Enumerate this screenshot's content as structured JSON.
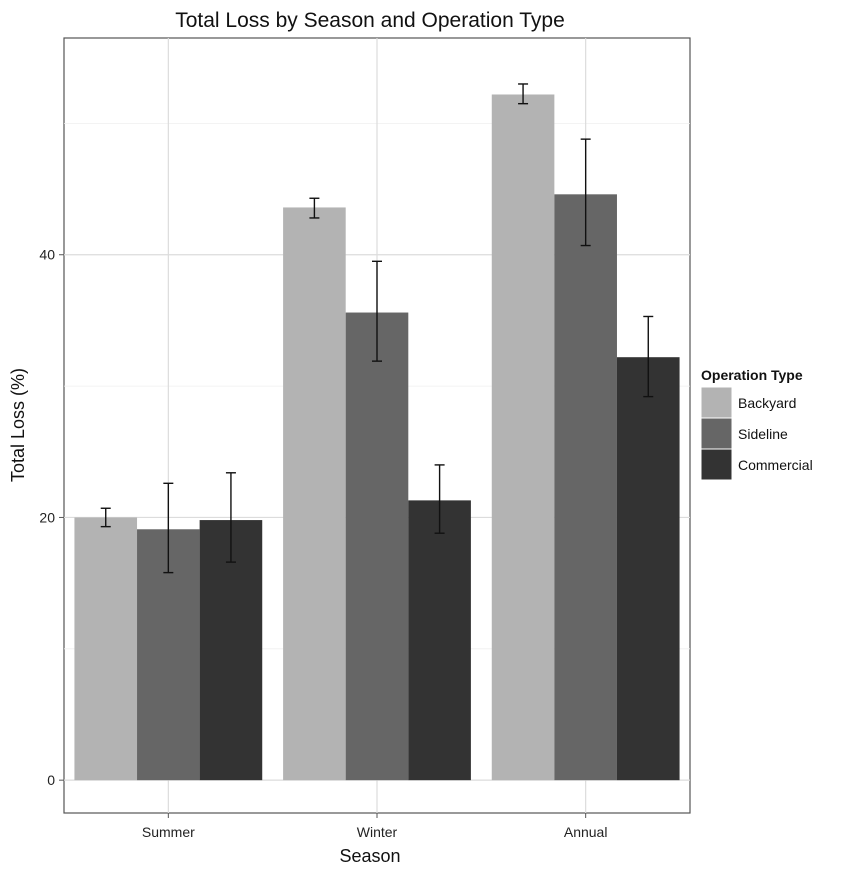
{
  "chart_data": {
    "type": "bar",
    "title": "Total Loss by Season and Operation Type",
    "xlabel": "Season",
    "ylabel": "Total Loss (%)",
    "categories": [
      "Summer",
      "Winter",
      "Annual"
    ],
    "series": [
      {
        "name": "Backyard",
        "color": "#b3b3b3",
        "values": [
          20.0,
          43.6,
          52.2
        ],
        "err_low": [
          19.3,
          42.8,
          51.5
        ],
        "err_high": [
          20.7,
          44.3,
          53.0
        ]
      },
      {
        "name": "Sideline",
        "color": "#666666",
        "values": [
          19.1,
          35.6,
          44.6
        ],
        "err_low": [
          15.8,
          31.9,
          40.7
        ],
        "err_high": [
          22.6,
          39.5,
          48.8
        ]
      },
      {
        "name": "Commercial",
        "color": "#333333",
        "values": [
          19.8,
          21.3,
          32.2
        ],
        "err_low": [
          16.6,
          18.8,
          29.2
        ],
        "err_high": [
          23.4,
          24.0,
          35.3
        ]
      }
    ],
    "yticks": [
      0,
      20,
      40
    ],
    "ylim": [
      -2.5,
      56.5
    ],
    "grid": true,
    "legend": {
      "title": "Operation Type",
      "position": "right"
    }
  }
}
